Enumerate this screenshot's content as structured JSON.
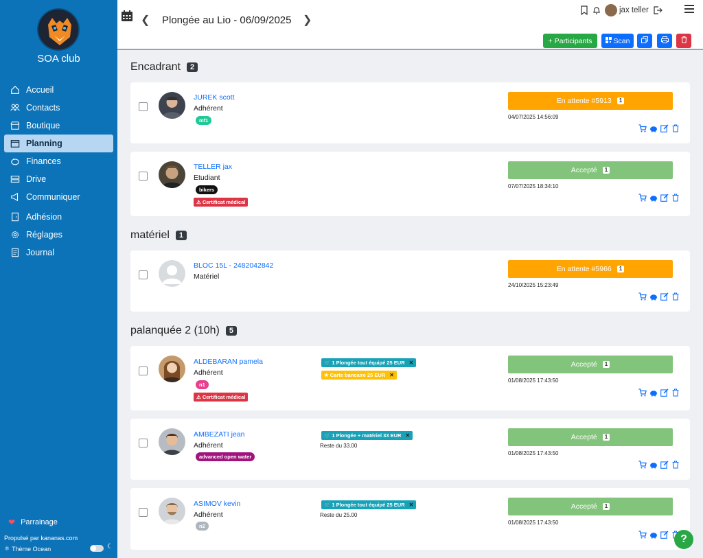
{
  "sidebar": {
    "club_name": "SOA club",
    "items": [
      {
        "label": "Accueil",
        "icon": "home-icon"
      },
      {
        "label": "Contacts",
        "icon": "users-icon"
      },
      {
        "label": "Boutique",
        "icon": "shop-icon"
      },
      {
        "label": "Planning",
        "icon": "calendar-icon",
        "active": true
      },
      {
        "label": "Finances",
        "icon": "piggy-bank-icon"
      },
      {
        "label": "Drive",
        "icon": "drive-icon"
      },
      {
        "label": "Communiquer",
        "icon": "megaphone-icon"
      },
      {
        "label": "Adhésion",
        "icon": "door-icon"
      },
      {
        "label": "Réglages",
        "icon": "gear-icon"
      },
      {
        "label": "Journal",
        "icon": "journal-icon"
      }
    ],
    "parrainage": "Parrainage",
    "propulse": "Propulsé par kananas.com",
    "theme": "Thème Ocean"
  },
  "header": {
    "title": "Plongée au Lio - 06/09/2025",
    "user_name": "jax teller"
  },
  "actions": {
    "participants": "Participants",
    "scan": "Scan"
  },
  "sections": [
    {
      "title": "Encadrant",
      "count": "2"
    },
    {
      "title": "matériel",
      "count": "1"
    },
    {
      "title": "palanquée 2 (10h)",
      "count": "5"
    }
  ],
  "participants": [
    {
      "name": "JUREK scott",
      "role": "Adhérent",
      "tag": "mf1",
      "status": "En attente #5913",
      "status_count": "1",
      "date": "04/07/2025 14:56:09"
    },
    {
      "name": "TELLER jax",
      "role": "Etudiant",
      "tag": "bikers",
      "cert": "Certificat médical",
      "status": "Accepté",
      "status_count": "1",
      "date": "07/07/2025 18:34:10"
    },
    {
      "name": "BLOC 15L - 2482042842",
      "role": "Matériel",
      "status": "En attente #5966",
      "status_count": "1",
      "date": "24/10/2025 15:23:49"
    },
    {
      "name": "ALDEBARAN pamela",
      "role": "Adhérent",
      "tag": "n1",
      "cert": "Certificat médical",
      "purchases": [
        "1 Plongée tout équipé 25 EUR",
        "Carte bancaire 25 EUR"
      ],
      "status": "Accepté",
      "status_count": "1",
      "date": "01/08/2025 17:43:50"
    },
    {
      "name": "AMBEZATI jean",
      "role": "Adhérent",
      "tag": "advanced open water",
      "purchases": [
        "1 Plongée + matériel 33 EUR"
      ],
      "reste": "Reste du 33.00",
      "status": "Accepté",
      "status_count": "1",
      "date": "01/08/2025 17:43:50"
    },
    {
      "name": "ASIMOV kevin",
      "role": "Adhérent",
      "tag": "n2",
      "purchases": [
        "1 Plongée tout équipé 25 EUR"
      ],
      "reste": "Reste du 25.00",
      "status": "Accepté",
      "status_count": "1",
      "date": "01/08/2025 17:43:50"
    }
  ],
  "help": "?"
}
